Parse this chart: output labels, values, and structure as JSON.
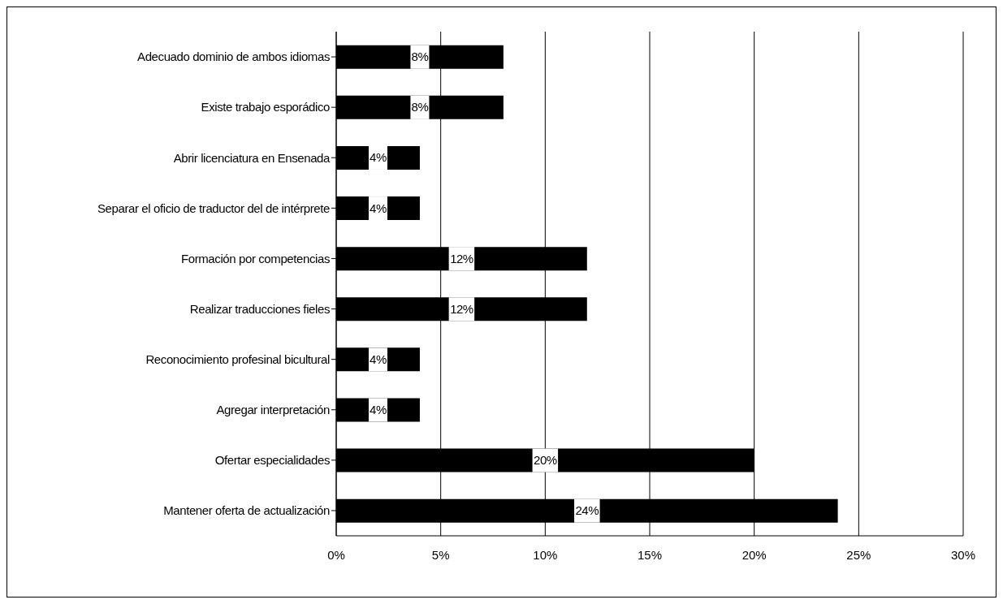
{
  "chart_data": {
    "type": "bar",
    "orientation": "horizontal",
    "categories": [
      "Adecuado dominio de ambos idiomas",
      "Existe trabajo esporádico",
      "Abrir licenciatura en Ensenada",
      "Separar el oficio de traductor del de intérprete",
      "Formación por competencias",
      "Realizar traducciones fieles",
      "Reconocimiento profesinal bicultural",
      "Agregar interpretación",
      "Ofertar especialidades",
      "Mantener oferta de actualización"
    ],
    "values": [
      8,
      8,
      4,
      4,
      12,
      12,
      4,
      4,
      20,
      24
    ],
    "value_labels": [
      "8%",
      "8%",
      "4%",
      "4%",
      "12%",
      "12%",
      "4%",
      "4%",
      "20%",
      "24%"
    ],
    "color": "#000000",
    "xlim": [
      0,
      30
    ],
    "xticks": [
      {
        "value": 0,
        "label": "0%"
      },
      {
        "value": 5,
        "label": "5%"
      },
      {
        "value": 10,
        "label": "10%"
      },
      {
        "value": 15,
        "label": "15%"
      },
      {
        "value": 20,
        "label": "20%"
      },
      {
        "value": 25,
        "label": "25%"
      },
      {
        "value": 30,
        "label": "30%"
      }
    ],
    "grid": "x",
    "legend": false
  }
}
